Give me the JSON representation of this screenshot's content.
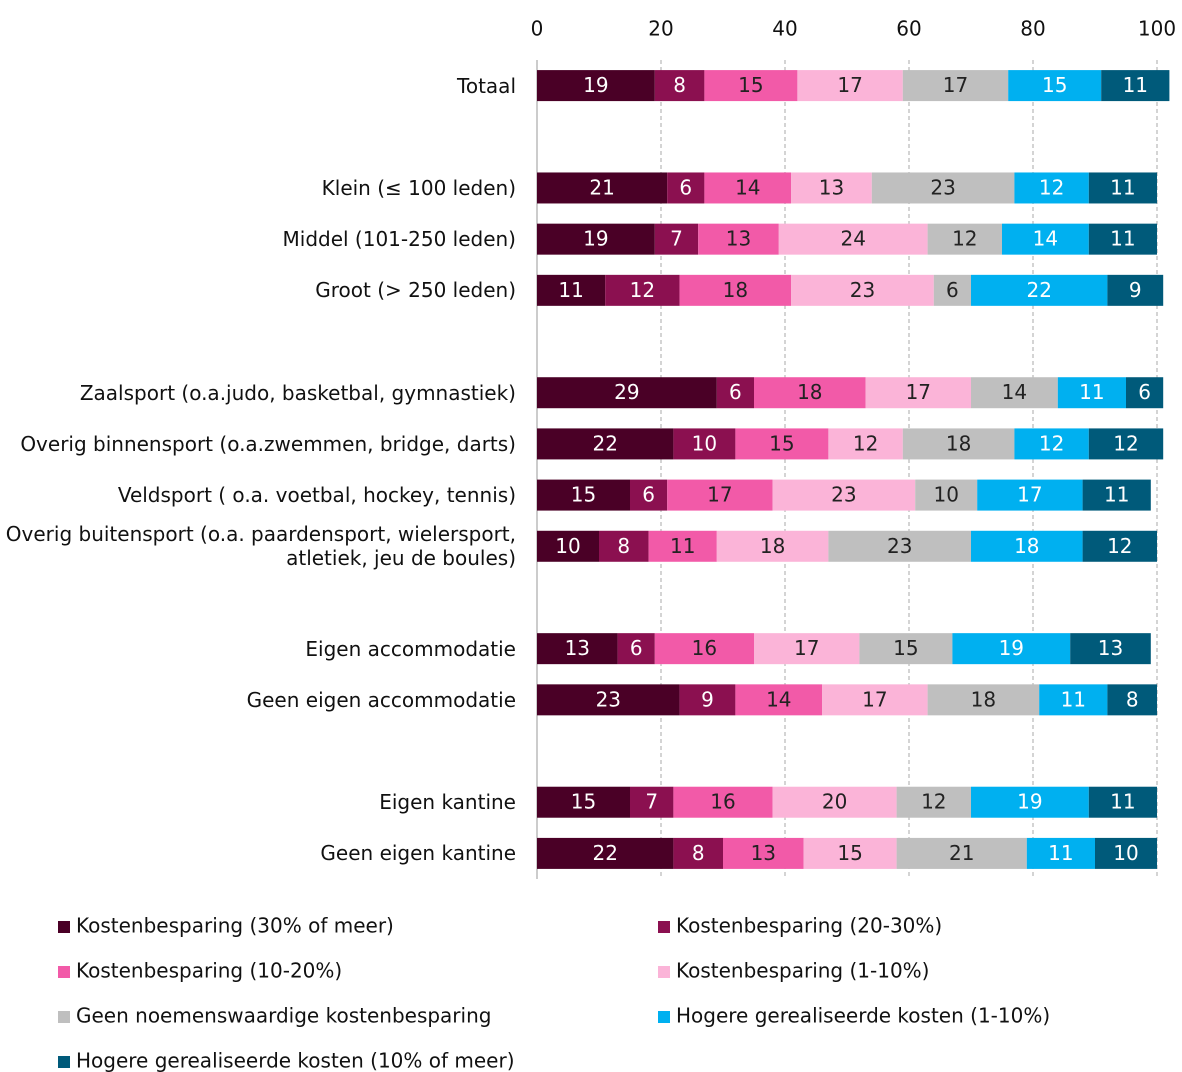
{
  "chart_data": {
    "type": "stacked-bar-horizontal",
    "categories": [
      "Totaal",
      null,
      "Klein (≤ 100 leden)",
      "Middel (101-250 leden)",
      "Groot (> 250 leden)",
      null,
      "Zaalsport (o.a.judo, basketbal, gymnastiek)",
      "Overig binnensport (o.a.zwemmen, bridge, darts)",
      "Veldsport ( o.a. voetbal, hockey, tennis)",
      "Overig buitensport (o.a. paardensport, wielersport, atletiek, jeu de boules)",
      null,
      "Eigen accommodatie",
      "Geen eigen accommodatie",
      null,
      "Eigen kantine",
      "Geen eigen kantine"
    ],
    "series": [
      {
        "name": "Kostenbesparing (30% of meer)",
        "color": "#4a0026",
        "values": [
          19,
          null,
          21,
          19,
          11,
          null,
          29,
          22,
          15,
          10,
          null,
          13,
          23,
          null,
          15,
          22
        ]
      },
      {
        "name": "Kostenbesparing (20-30%)",
        "color": "#8b1050",
        "values": [
          8,
          null,
          6,
          7,
          12,
          null,
          6,
          10,
          6,
          8,
          null,
          6,
          9,
          null,
          7,
          8
        ]
      },
      {
        "name": "Kostenbesparing (10-20%)",
        "color": "#f25aa8",
        "values": [
          15,
          null,
          14,
          13,
          18,
          null,
          18,
          15,
          17,
          11,
          null,
          16,
          14,
          null,
          16,
          13
        ]
      },
      {
        "name": "Kostenbesparing (1-10%)",
        "color": "#fbb4d8",
        "values": [
          17,
          null,
          13,
          24,
          23,
          null,
          17,
          12,
          23,
          18,
          null,
          17,
          17,
          null,
          20,
          15
        ]
      },
      {
        "name": "Geen noemenswaardige kostenbesparing",
        "color": "#bfbfbf",
        "values": [
          17,
          null,
          23,
          12,
          6,
          null,
          14,
          18,
          10,
          23,
          null,
          15,
          18,
          null,
          12,
          21
        ]
      },
      {
        "name": "Hogere gerealiseerde kosten (1-10%)",
        "color": "#00b0f0",
        "values": [
          15,
          null,
          12,
          14,
          22,
          null,
          11,
          12,
          17,
          18,
          null,
          19,
          11,
          null,
          19,
          11
        ]
      },
      {
        "name": "Hogere gerealiseerde kosten (10% of meer)",
        "color": "#005a7a",
        "values": [
          11,
          null,
          11,
          11,
          9,
          null,
          6,
          12,
          11,
          12,
          null,
          13,
          8,
          null,
          11,
          10
        ]
      }
    ],
    "xlim": [
      0,
      100
    ],
    "xticks": [
      0,
      20,
      40,
      60,
      80,
      100
    ],
    "grid": true
  }
}
